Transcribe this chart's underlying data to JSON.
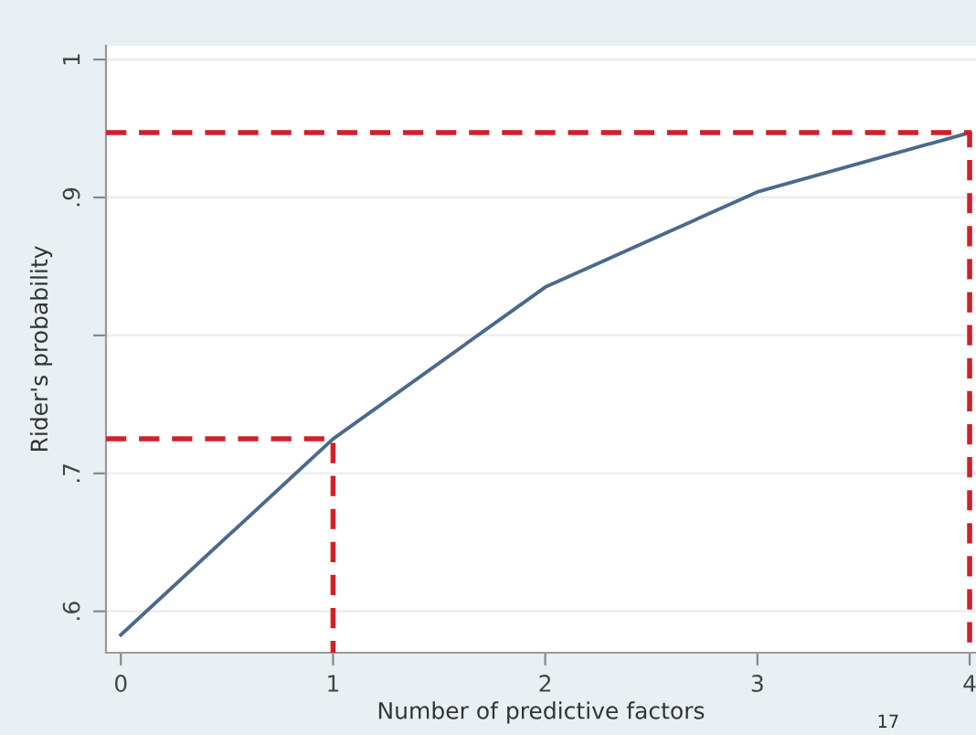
{
  "chart_data": {
    "type": "line",
    "xlabel": "Number of predictive factors",
    "ylabel": "Rider's probability",
    "x": [
      0,
      1,
      2,
      3,
      4
    ],
    "series": [
      {
        "color": "#4a6a8c",
        "values": [
          0.583,
          0.725,
          0.835,
          0.904,
          0.947
        ]
      },
      {
        "type": "line",
        "x": [
          -0.07,
          1,
          1
        ],
        "values": [
          0.725,
          0.725,
          0.57
        ],
        "color": "#d0202a",
        "line_style": "dashed"
      },
      {
        "type": "line",
        "x": [
          -0.07,
          4,
          4
        ],
        "values": [
          0.947,
          0.947,
          0.57
        ],
        "color": "#d0202a",
        "line_style": "dashed"
      }
    ],
    "xlim": [
      -0.07,
      4.03
    ],
    "ylim": [
      0.57,
      1.01
    ],
    "xticks": [
      0,
      1,
      2,
      3,
      4
    ],
    "yticks": [
      {
        "value": 0.6,
        "label": ".6"
      },
      {
        "value": 0.7,
        "label": ".7"
      },
      {
        "value": 0.8,
        "label": null
      },
      {
        "value": 0.9,
        "label": ".9"
      },
      {
        "value": 1,
        "label": "1"
      }
    ],
    "grid": "y",
    "line_style": "solid",
    "marker": "none",
    "annotations": [
      "17"
    ]
  }
}
